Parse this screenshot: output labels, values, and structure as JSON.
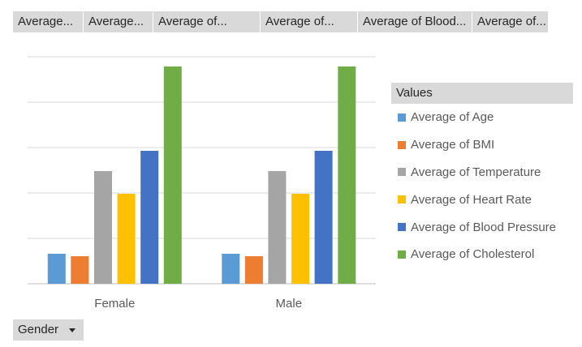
{
  "field_buttons": [
    {
      "label": "Average..."
    },
    {
      "label": "Average..."
    },
    {
      "label": "Average of..."
    },
    {
      "label": "Average of..."
    },
    {
      "label": "Average of Blood..."
    },
    {
      "label": "Average of..."
    }
  ],
  "legend": {
    "header": "Values"
  },
  "axis_button": {
    "label": "Gender"
  },
  "chart_data": {
    "type": "bar",
    "categories": [
      "Female",
      "Male"
    ],
    "ylim": [
      0,
      280
    ],
    "grid": true,
    "legend_position": "right",
    "series": [
      {
        "name": "Average of Age",
        "color": "#5b9bd5",
        "values": [
          37,
          37
        ]
      },
      {
        "name": "Average of BMI",
        "color": "#ed7d31",
        "values": [
          34,
          34
        ]
      },
      {
        "name": "Average of Temperature",
        "color": "#a5a5a5",
        "values": [
          139,
          139
        ]
      },
      {
        "name": "Average of Heart Rate",
        "color": "#ffc000",
        "values": [
          111,
          111
        ]
      },
      {
        "name": "Average of Blood Pressure",
        "color": "#4472c4",
        "values": [
          164,
          164
        ]
      },
      {
        "name": "Average of Cholesterol",
        "color": "#70ad47",
        "values": [
          268,
          268
        ]
      }
    ]
  }
}
